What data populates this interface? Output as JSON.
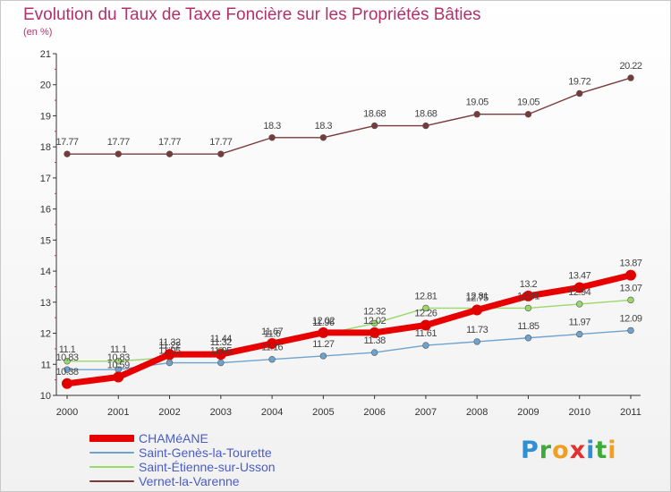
{
  "title": "Evolution du Taux de Taxe Foncière sur les Propriétés Bâties",
  "subtitle": "(en %)",
  "logo_text": "Proxiti",
  "logo_colors": [
    "#2d8fd6",
    "#3cab3c",
    "#f0a020",
    "#e03030",
    "#2d8fd6",
    "#3cab3c",
    "#f0a020"
  ],
  "chart_data": {
    "type": "line",
    "title": "Evolution du Taux de Taxe Foncière sur les Propriétés Bâties",
    "subtitle": "(en %)",
    "xlabel": "",
    "ylabel": "",
    "x": [
      "2000",
      "2001",
      "2002",
      "2003",
      "2004",
      "2005",
      "2006",
      "2007",
      "2008",
      "2009",
      "2010",
      "2011"
    ],
    "ylim": [
      10,
      21
    ],
    "yticks": [
      10,
      11,
      12,
      13,
      14,
      15,
      16,
      17,
      18,
      19,
      20,
      21
    ],
    "grid": false,
    "legend_position": "bottom-left",
    "series": [
      {
        "name": "CHAMéANE",
        "color": "#e80000",
        "values": [
          10.38,
          10.59,
          11.32,
          11.32,
          11.67,
          12.02,
          12.02,
          12.26,
          12.75,
          13.2,
          13.47,
          13.87
        ],
        "labels": [
          "10.38",
          "10.59",
          "11.32",
          "11.32",
          "11.67",
          "12.02",
          "12.02",
          "12.26",
          "12.75",
          "13.2",
          "13.47",
          "13.87"
        ]
      },
      {
        "name": "Saint-Genès-la-Tourette",
        "color": "#6fa3cf",
        "values": [
          10.83,
          10.83,
          11.05,
          11.05,
          11.16,
          11.27,
          11.38,
          11.61,
          11.73,
          11.85,
          11.97,
          12.09
        ],
        "labels": [
          "10.83",
          "10.83",
          "11.05",
          "11.05",
          "11.16",
          "11.27",
          "11.38",
          "11.61",
          "11.73",
          "11.85",
          "11.97",
          "12.09"
        ]
      },
      {
        "name": "Saint-Étienne-sur-Usson",
        "color": "#9ad86a",
        "values": [
          11.1,
          11.1,
          11.22,
          11.44,
          11.6,
          11.96,
          12.32,
          12.81,
          12.81,
          12.81,
          12.94,
          13.07
        ],
        "labels": [
          "11.1",
          "11.1",
          "11.22",
          "11.44",
          "11.6",
          "11.96",
          "12.32",
          "12.81",
          "12.81",
          "12.81",
          "12.94",
          "13.07"
        ]
      },
      {
        "name": "Vernet-la-Varenne",
        "color": "#7a3a3a",
        "values": [
          17.77,
          17.77,
          17.77,
          17.77,
          18.3,
          18.3,
          18.68,
          18.68,
          19.05,
          19.05,
          19.72,
          20.22
        ],
        "labels": [
          "17.77",
          "17.77",
          "17.77",
          "17.77",
          "18.3",
          "18.3",
          "18.68",
          "18.68",
          "19.05",
          "19.05",
          "19.72",
          "20.22"
        ]
      }
    ]
  }
}
